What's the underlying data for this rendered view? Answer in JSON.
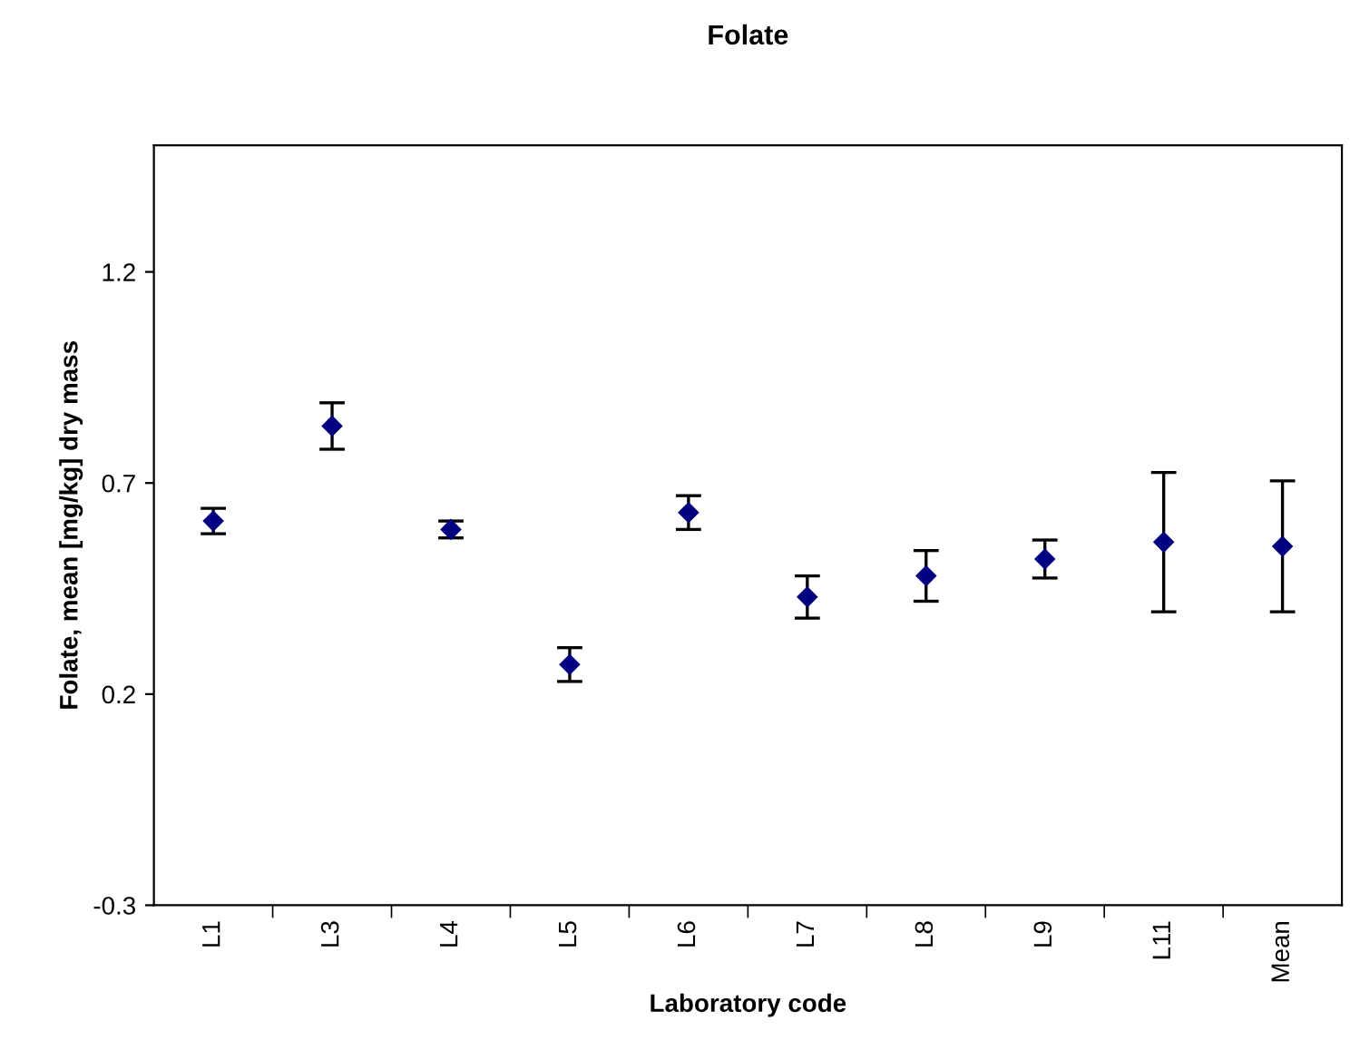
{
  "chart_data": {
    "type": "scatter",
    "title": "Folate",
    "xlabel": "Laboratory code",
    "ylabel": "Folate, mean [mg/kg] dry mass",
    "categories": [
      "L1",
      "L3",
      "L4",
      "L5",
      "L6",
      "L7",
      "L8",
      "L9",
      "L11",
      "Mean"
    ],
    "series": [
      {
        "color": "#000080",
        "values": [
          0.61,
          0.835,
          0.59,
          0.27,
          0.63,
          0.43,
          0.48,
          0.52,
          0.56,
          0.55
        ],
        "errors": [
          0.03,
          0.055,
          0.02,
          0.04,
          0.04,
          0.05,
          0.06,
          0.045,
          0.165,
          0.155
        ]
      }
    ],
    "marker": "diamond",
    "ylim": [
      -0.3,
      1.5
    ],
    "yticks": [
      -0.3,
      0.2,
      0.7,
      1.2
    ],
    "grid": false,
    "legend": false
  }
}
